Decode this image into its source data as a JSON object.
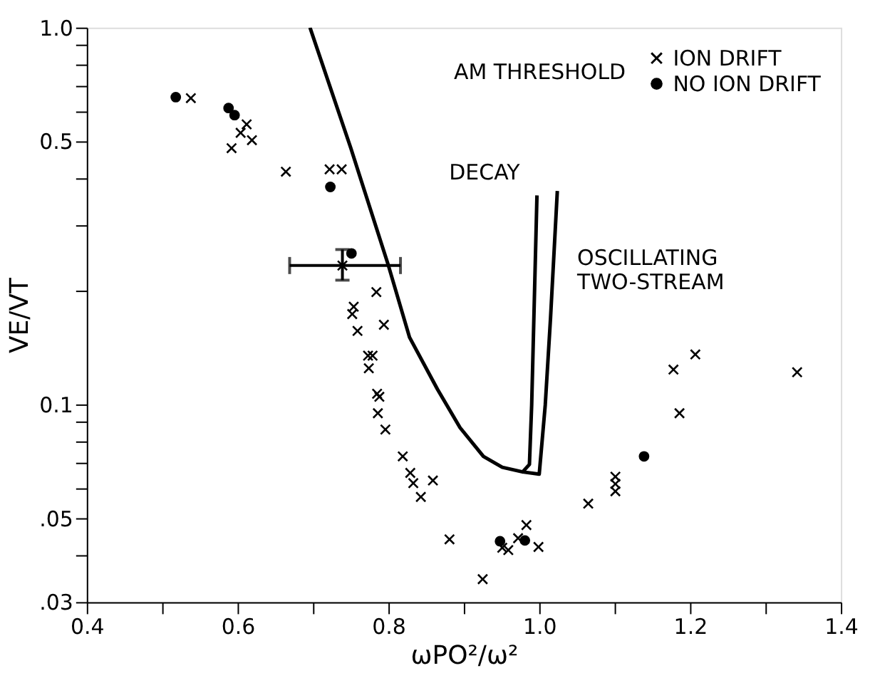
{
  "chart_data": {
    "type": "scatter",
    "xlabel": "ωPO²/ω²",
    "ylabel": "VE/VT",
    "legend_title": "AM THRESHOLD",
    "legend": "top right",
    "grid": false,
    "log": "y",
    "xlim": [
      0.4,
      1.4
    ],
    "xticks": [
      0.4,
      {
        "value": 0.5,
        "label": null
      },
      0.6,
      {
        "value": 0.7,
        "label": null
      },
      0.8,
      {
        "value": 0.9,
        "label": null
      },
      {
        "value": 1.0,
        "label": "1.0"
      },
      {
        "value": 1.1,
        "label": null
      },
      1.2,
      {
        "value": 1.3,
        "label": null
      },
      1.4
    ],
    "ylim": [
      0.03,
      1.0
    ],
    "yticks": [
      {
        "value": 0.03,
        "label": ".03"
      },
      {
        "value": 0.04,
        "label": null
      },
      {
        "value": 0.05,
        "label": ".05"
      },
      {
        "value": 0.06,
        "label": null
      },
      {
        "value": 0.07,
        "label": null
      },
      {
        "value": 0.08,
        "label": null
      },
      {
        "value": 0.09,
        "label": null
      },
      0.1,
      {
        "value": 0.2,
        "label": null
      },
      {
        "value": 0.3,
        "label": null
      },
      {
        "value": 0.4,
        "label": null
      },
      0.5,
      {
        "value": 0.6,
        "label": null
      },
      {
        "value": 0.7,
        "label": null
      },
      {
        "value": 0.8,
        "label": null
      },
      {
        "value": 0.9,
        "label": null
      },
      {
        "value": 1.0,
        "label": "1.0"
      }
    ],
    "series": [
      {
        "name": "ION DRIFT",
        "marker": "cross",
        "color": "#000000",
        "x": [
          0.538,
          0.612,
          0.604,
          0.619,
          0.592,
          0.664,
          0.722,
          0.738,
          0.739,
          0.784,
          0.754,
          0.752,
          0.794,
          0.759,
          0.773,
          0.779,
          0.774,
          0.785,
          0.788,
          0.786,
          0.796,
          0.819,
          0.829,
          0.833,
          0.859,
          0.843,
          0.881,
          0.925,
          0.951,
          0.959,
          0.972,
          0.983,
          0.999,
          1.065,
          1.101,
          1.101,
          1.101,
          1.178,
          1.207,
          1.186,
          1.342
        ],
        "values": [
          0.65,
          0.554,
          0.526,
          0.503,
          0.479,
          0.415,
          0.421,
          0.421,
          0.234,
          0.199,
          0.182,
          0.174,
          0.163,
          0.157,
          0.135,
          0.135,
          0.125,
          0.107,
          0.105,
          0.095,
          0.086,
          0.073,
          0.066,
          0.062,
          0.063,
          0.057,
          0.044,
          0.0345,
          0.0418,
          0.0412,
          0.0443,
          0.048,
          0.042,
          0.0547,
          0.0645,
          0.0617,
          0.059,
          0.124,
          0.136,
          0.095,
          0.122
        ],
        "errors": [
          null,
          null,
          null,
          null,
          null,
          null,
          null,
          null,
          [
            0.214,
            0.258
          ],
          null,
          null,
          null,
          null,
          null,
          null,
          null,
          null,
          null,
          null,
          null,
          null,
          null,
          null,
          null,
          null,
          null,
          null,
          null,
          null,
          null,
          null,
          null,
          null,
          null,
          null,
          null,
          null,
          null,
          null,
          null,
          null
        ],
        "xerrors": [
          null,
          null,
          null,
          null,
          null,
          null,
          null,
          null,
          [
            0.669,
            0.816
          ],
          null,
          null,
          null,
          null,
          null,
          null,
          null,
          null,
          null,
          null,
          null,
          null,
          null,
          null,
          null,
          null,
          null,
          null,
          null,
          null,
          null,
          null,
          null,
          null,
          null,
          null,
          null,
          null,
          null,
          null,
          null,
          null
        ]
      },
      {
        "name": "NO ION DRIFT",
        "marker": "circle",
        "color": "#000000",
        "x": [
          0.518,
          0.588,
          0.596,
          0.723,
          0.751,
          0.948,
          0.981,
          1.139
        ],
        "values": [
          0.654,
          0.612,
          0.586,
          0.378,
          0.252,
          0.0435,
          0.0437,
          0.073
        ]
      },
      {
        "name": "DECAY",
        "type": "line",
        "line_style": "solid",
        "color": "#000000",
        "x": [
          0.696,
          0.75,
          0.8,
          0.828,
          0.865,
          0.895,
          0.926,
          0.951,
          0.978,
          0.987,
          0.99,
          0.997
        ],
        "values": [
          1.0,
          0.48,
          0.234,
          0.151,
          0.11,
          0.087,
          0.073,
          0.0683,
          0.0664,
          0.0695,
          0.1,
          0.359
        ]
      },
      {
        "name": "OSCILLATING\nTWO-STREAM",
        "type": "line",
        "line_style": "solid",
        "color": "#000000",
        "x": [
          0.978,
          1.0,
          1.008,
          1.015,
          1.024
        ],
        "values": [
          0.0664,
          0.0655,
          0.1,
          0.17,
          0.369
        ]
      }
    ]
  }
}
